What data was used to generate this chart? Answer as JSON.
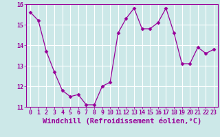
{
  "x": [
    0,
    1,
    2,
    3,
    4,
    5,
    6,
    7,
    8,
    9,
    10,
    11,
    12,
    13,
    14,
    15,
    16,
    17,
    18,
    19,
    20,
    21,
    22,
    23
  ],
  "y": [
    15.6,
    15.2,
    13.7,
    12.7,
    11.8,
    11.5,
    11.6,
    11.1,
    11.1,
    12.0,
    12.2,
    14.6,
    15.3,
    15.8,
    14.8,
    14.8,
    15.1,
    15.8,
    14.6,
    13.1,
    13.1,
    13.9,
    13.6,
    13.8
  ],
  "line_color": "#990099",
  "marker": "D",
  "marker_size": 2.5,
  "bg_color": "#cce8e8",
  "grid_color": "#ffffff",
  "xlabel": "Windchill (Refroidissement éolien,°C)",
  "xlabel_color": "#990099",
  "ylim": [
    11,
    16
  ],
  "xlim_min": -0.5,
  "xlim_max": 23.5,
  "yticks": [
    11,
    12,
    13,
    14,
    15,
    16
  ],
  "xticks": [
    0,
    1,
    2,
    3,
    4,
    5,
    6,
    7,
    8,
    9,
    10,
    11,
    12,
    13,
    14,
    15,
    16,
    17,
    18,
    19,
    20,
    21,
    22,
    23
  ],
  "tick_fontsize": 6,
  "xlabel_fontsize": 7.5
}
